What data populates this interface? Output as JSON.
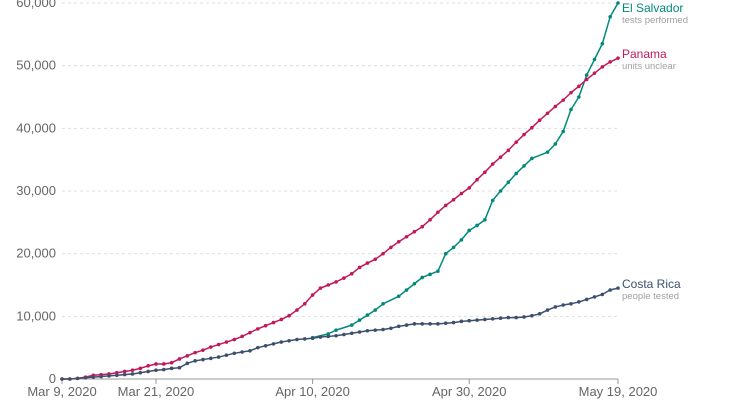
{
  "chart_data": {
    "type": "line",
    "title": "",
    "xlabel": "",
    "ylabel": "",
    "x_range": [
      "2020-03-09",
      "2020-05-19"
    ],
    "ylim": [
      0,
      60000
    ],
    "y_ticks": [
      {
        "value": 0,
        "label": "0"
      },
      {
        "value": 10000,
        "label": "10,000"
      },
      {
        "value": 20000,
        "label": "20,000"
      },
      {
        "value": 30000,
        "label": "30,000"
      },
      {
        "value": 40000,
        "label": "40,000"
      },
      {
        "value": 50000,
        "label": "50,000"
      },
      {
        "value": 60000,
        "label": "60,000"
      }
    ],
    "x_ticks": [
      {
        "date": "2020-03-09",
        "label": "Mar 9, 2020"
      },
      {
        "date": "2020-03-21",
        "label": "Mar 21, 2020"
      },
      {
        "date": "2020-04-10",
        "label": "Apr 10, 2020"
      },
      {
        "date": "2020-04-30",
        "label": "Apr 30, 2020"
      },
      {
        "date": "2020-05-19",
        "label": "May 19, 2020"
      }
    ],
    "grid": "horizontal-dashed",
    "legend": "inline-right",
    "series": [
      {
        "name": "El Salvador",
        "note": "tests performed",
        "color": "#00897b",
        "points": [
          [
            "2020-04-10",
            6600
          ],
          [
            "2020-04-12",
            7200
          ],
          [
            "2020-04-13",
            7800
          ],
          [
            "2020-04-15",
            8600
          ],
          [
            "2020-04-16",
            9400
          ],
          [
            "2020-04-17",
            10200
          ],
          [
            "2020-04-18",
            11000
          ],
          [
            "2020-04-19",
            12000
          ],
          [
            "2020-04-21",
            13200
          ],
          [
            "2020-04-22",
            14200
          ],
          [
            "2020-04-23",
            15200
          ],
          [
            "2020-04-24",
            16200
          ],
          [
            "2020-04-25",
            16700
          ],
          [
            "2020-04-26",
            17200
          ],
          [
            "2020-04-27",
            20000
          ],
          [
            "2020-04-28",
            21000
          ],
          [
            "2020-04-29",
            22200
          ],
          [
            "2020-04-30",
            23700
          ],
          [
            "2020-05-01",
            24500
          ],
          [
            "2020-05-02",
            25400
          ],
          [
            "2020-05-03",
            28500
          ],
          [
            "2020-05-04",
            30000
          ],
          [
            "2020-05-05",
            31400
          ],
          [
            "2020-05-06",
            32800
          ],
          [
            "2020-05-07",
            34000
          ],
          [
            "2020-05-08",
            35200
          ],
          [
            "2020-05-10",
            36200
          ],
          [
            "2020-05-11",
            37500
          ],
          [
            "2020-05-12",
            39500
          ],
          [
            "2020-05-13",
            43000
          ],
          [
            "2020-05-14",
            45000
          ],
          [
            "2020-05-15",
            48500
          ],
          [
            "2020-05-16",
            51000
          ],
          [
            "2020-05-17",
            53500
          ],
          [
            "2020-05-18",
            57800
          ],
          [
            "2020-05-19",
            60000
          ]
        ]
      },
      {
        "name": "Panama",
        "note": "units unclear",
        "color": "#c2185b",
        "points": [
          [
            "2020-03-09",
            0
          ],
          [
            "2020-03-10",
            0
          ],
          [
            "2020-03-11",
            100
          ],
          [
            "2020-03-12",
            300
          ],
          [
            "2020-03-13",
            600
          ],
          [
            "2020-03-14",
            700
          ],
          [
            "2020-03-15",
            800
          ],
          [
            "2020-03-16",
            1000
          ],
          [
            "2020-03-17",
            1200
          ],
          [
            "2020-03-18",
            1400
          ],
          [
            "2020-03-19",
            1700
          ],
          [
            "2020-03-20",
            2100
          ],
          [
            "2020-03-21",
            2400
          ],
          [
            "2020-03-22",
            2400
          ],
          [
            "2020-03-23",
            2600
          ],
          [
            "2020-03-24",
            3200
          ],
          [
            "2020-03-25",
            3700
          ],
          [
            "2020-03-26",
            4200
          ],
          [
            "2020-03-27",
            4600
          ],
          [
            "2020-03-28",
            5100
          ],
          [
            "2020-03-29",
            5500
          ],
          [
            "2020-03-30",
            5900
          ],
          [
            "2020-03-31",
            6300
          ],
          [
            "2020-04-01",
            6800
          ],
          [
            "2020-04-02",
            7400
          ],
          [
            "2020-04-03",
            8000
          ],
          [
            "2020-04-04",
            8500
          ],
          [
            "2020-04-05",
            9000
          ],
          [
            "2020-04-06",
            9500
          ],
          [
            "2020-04-07",
            10100
          ],
          [
            "2020-04-08",
            11000
          ],
          [
            "2020-04-09",
            12000
          ],
          [
            "2020-04-10",
            13400
          ],
          [
            "2020-04-11",
            14500
          ],
          [
            "2020-04-12",
            15000
          ],
          [
            "2020-04-13",
            15500
          ],
          [
            "2020-04-14",
            16100
          ],
          [
            "2020-04-15",
            16800
          ],
          [
            "2020-04-16",
            17800
          ],
          [
            "2020-04-17",
            18500
          ],
          [
            "2020-04-18",
            19100
          ],
          [
            "2020-04-19",
            20000
          ],
          [
            "2020-04-20",
            21000
          ],
          [
            "2020-04-21",
            21900
          ],
          [
            "2020-04-22",
            22700
          ],
          [
            "2020-04-23",
            23500
          ],
          [
            "2020-04-24",
            24300
          ],
          [
            "2020-04-25",
            25400
          ],
          [
            "2020-04-26",
            26600
          ],
          [
            "2020-04-27",
            27700
          ],
          [
            "2020-04-28",
            28600
          ],
          [
            "2020-04-29",
            29600
          ],
          [
            "2020-04-30",
            30500
          ],
          [
            "2020-05-01",
            31800
          ],
          [
            "2020-05-02",
            33000
          ],
          [
            "2020-05-03",
            34300
          ],
          [
            "2020-05-04",
            35400
          ],
          [
            "2020-05-05",
            36500
          ],
          [
            "2020-05-06",
            37800
          ],
          [
            "2020-05-07",
            39000
          ],
          [
            "2020-05-08",
            40100
          ],
          [
            "2020-05-09",
            41300
          ],
          [
            "2020-05-10",
            42400
          ],
          [
            "2020-05-11",
            43500
          ],
          [
            "2020-05-12",
            44500
          ],
          [
            "2020-05-13",
            45700
          ],
          [
            "2020-05-14",
            46700
          ],
          [
            "2020-05-15",
            47800
          ],
          [
            "2020-05-16",
            48800
          ],
          [
            "2020-05-17",
            49800
          ],
          [
            "2020-05-18",
            50600
          ],
          [
            "2020-05-19",
            51200
          ]
        ]
      },
      {
        "name": "Costa Rica",
        "note": "people tested",
        "color": "#3d4f6e",
        "points": [
          [
            "2020-03-09",
            0
          ],
          [
            "2020-03-10",
            0
          ],
          [
            "2020-03-11",
            100
          ],
          [
            "2020-03-12",
            200
          ],
          [
            "2020-03-13",
            300
          ],
          [
            "2020-03-14",
            400
          ],
          [
            "2020-03-15",
            500
          ],
          [
            "2020-03-16",
            600
          ],
          [
            "2020-03-17",
            700
          ],
          [
            "2020-03-18",
            800
          ],
          [
            "2020-03-19",
            1000
          ],
          [
            "2020-03-20",
            1200
          ],
          [
            "2020-03-21",
            1400
          ],
          [
            "2020-03-22",
            1500
          ],
          [
            "2020-03-23",
            1700
          ],
          [
            "2020-03-24",
            1800
          ],
          [
            "2020-03-25",
            2500
          ],
          [
            "2020-03-26",
            2900
          ],
          [
            "2020-03-27",
            3100
          ],
          [
            "2020-03-28",
            3300
          ],
          [
            "2020-03-29",
            3500
          ],
          [
            "2020-03-30",
            3800
          ],
          [
            "2020-03-31",
            4100
          ],
          [
            "2020-04-01",
            4300
          ],
          [
            "2020-04-02",
            4500
          ],
          [
            "2020-04-03",
            5000
          ],
          [
            "2020-04-04",
            5300
          ],
          [
            "2020-04-05",
            5600
          ],
          [
            "2020-04-06",
            5900
          ],
          [
            "2020-04-07",
            6100
          ],
          [
            "2020-04-08",
            6300
          ],
          [
            "2020-04-09",
            6400
          ],
          [
            "2020-04-10",
            6500
          ],
          [
            "2020-04-11",
            6700
          ],
          [
            "2020-04-12",
            6800
          ],
          [
            "2020-04-13",
            6900
          ],
          [
            "2020-04-14",
            7100
          ],
          [
            "2020-04-15",
            7300
          ],
          [
            "2020-04-16",
            7500
          ],
          [
            "2020-04-17",
            7700
          ],
          [
            "2020-04-18",
            7800
          ],
          [
            "2020-04-19",
            7900
          ],
          [
            "2020-04-20",
            8100
          ],
          [
            "2020-04-21",
            8400
          ],
          [
            "2020-04-22",
            8600
          ],
          [
            "2020-04-23",
            8800
          ],
          [
            "2020-04-24",
            8800
          ],
          [
            "2020-04-25",
            8800
          ],
          [
            "2020-04-26",
            8800
          ],
          [
            "2020-04-27",
            8900
          ],
          [
            "2020-04-28",
            9000
          ],
          [
            "2020-04-29",
            9200
          ],
          [
            "2020-04-30",
            9300
          ],
          [
            "2020-05-01",
            9400
          ],
          [
            "2020-05-02",
            9500
          ],
          [
            "2020-05-03",
            9600
          ],
          [
            "2020-05-04",
            9700
          ],
          [
            "2020-05-05",
            9800
          ],
          [
            "2020-05-06",
            9800
          ],
          [
            "2020-05-07",
            9900
          ],
          [
            "2020-05-08",
            10100
          ],
          [
            "2020-05-09",
            10400
          ],
          [
            "2020-05-10",
            11000
          ],
          [
            "2020-05-11",
            11500
          ],
          [
            "2020-05-12",
            11800
          ],
          [
            "2020-05-13",
            12000
          ],
          [
            "2020-05-14",
            12300
          ],
          [
            "2020-05-15",
            12700
          ],
          [
            "2020-05-16",
            13100
          ],
          [
            "2020-05-17",
            13500
          ],
          [
            "2020-05-18",
            14200
          ],
          [
            "2020-05-19",
            14500
          ]
        ]
      }
    ]
  }
}
